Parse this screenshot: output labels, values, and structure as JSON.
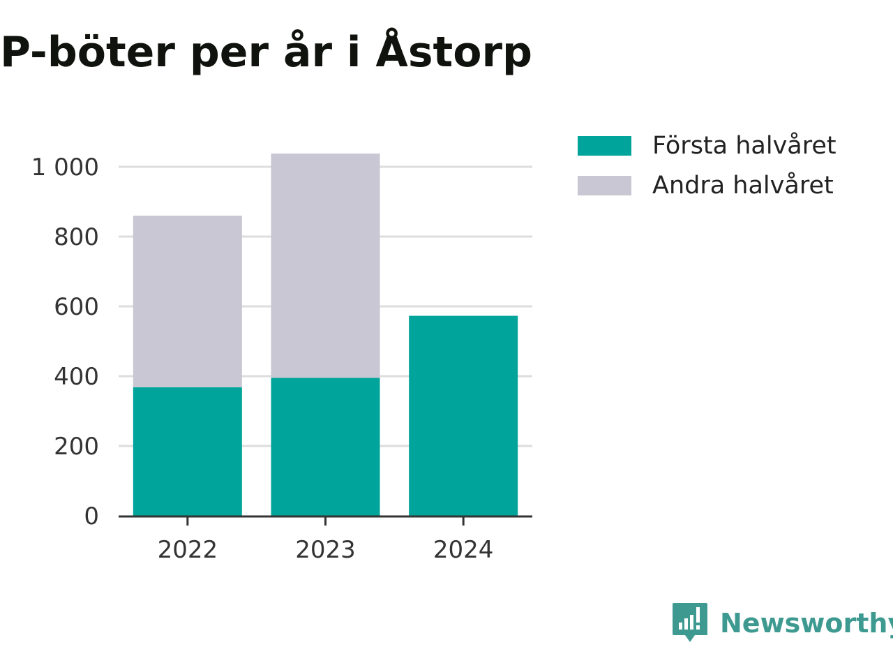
{
  "chart_data": {
    "type": "bar",
    "stacked": true,
    "title": "P-böter per år i Åstorp",
    "xlabel": "",
    "ylabel": "",
    "categories": [
      "2022",
      "2023",
      "2024"
    ],
    "series": [
      {
        "name": "Första halvåret",
        "color": "#00a49a",
        "values": [
          368,
          395,
          573
        ]
      },
      {
        "name": "Andra halvåret",
        "color": "#c8c7d3",
        "values": [
          492,
          643,
          0
        ]
      }
    ],
    "ylim": [
      0,
      1040
    ],
    "yticks": [
      0,
      200,
      400,
      600,
      800,
      1000
    ],
    "ytick_labels": [
      "0",
      "200",
      "400",
      "600",
      "800",
      "1 000"
    ],
    "grid": true,
    "legend_position": "top-right"
  },
  "brand": {
    "name": "Newsworthy",
    "icon": "newsworthy-logo-icon",
    "color": "#3e9a91"
  },
  "colors": {
    "axis": "#333333",
    "grid": "#dddddd"
  }
}
